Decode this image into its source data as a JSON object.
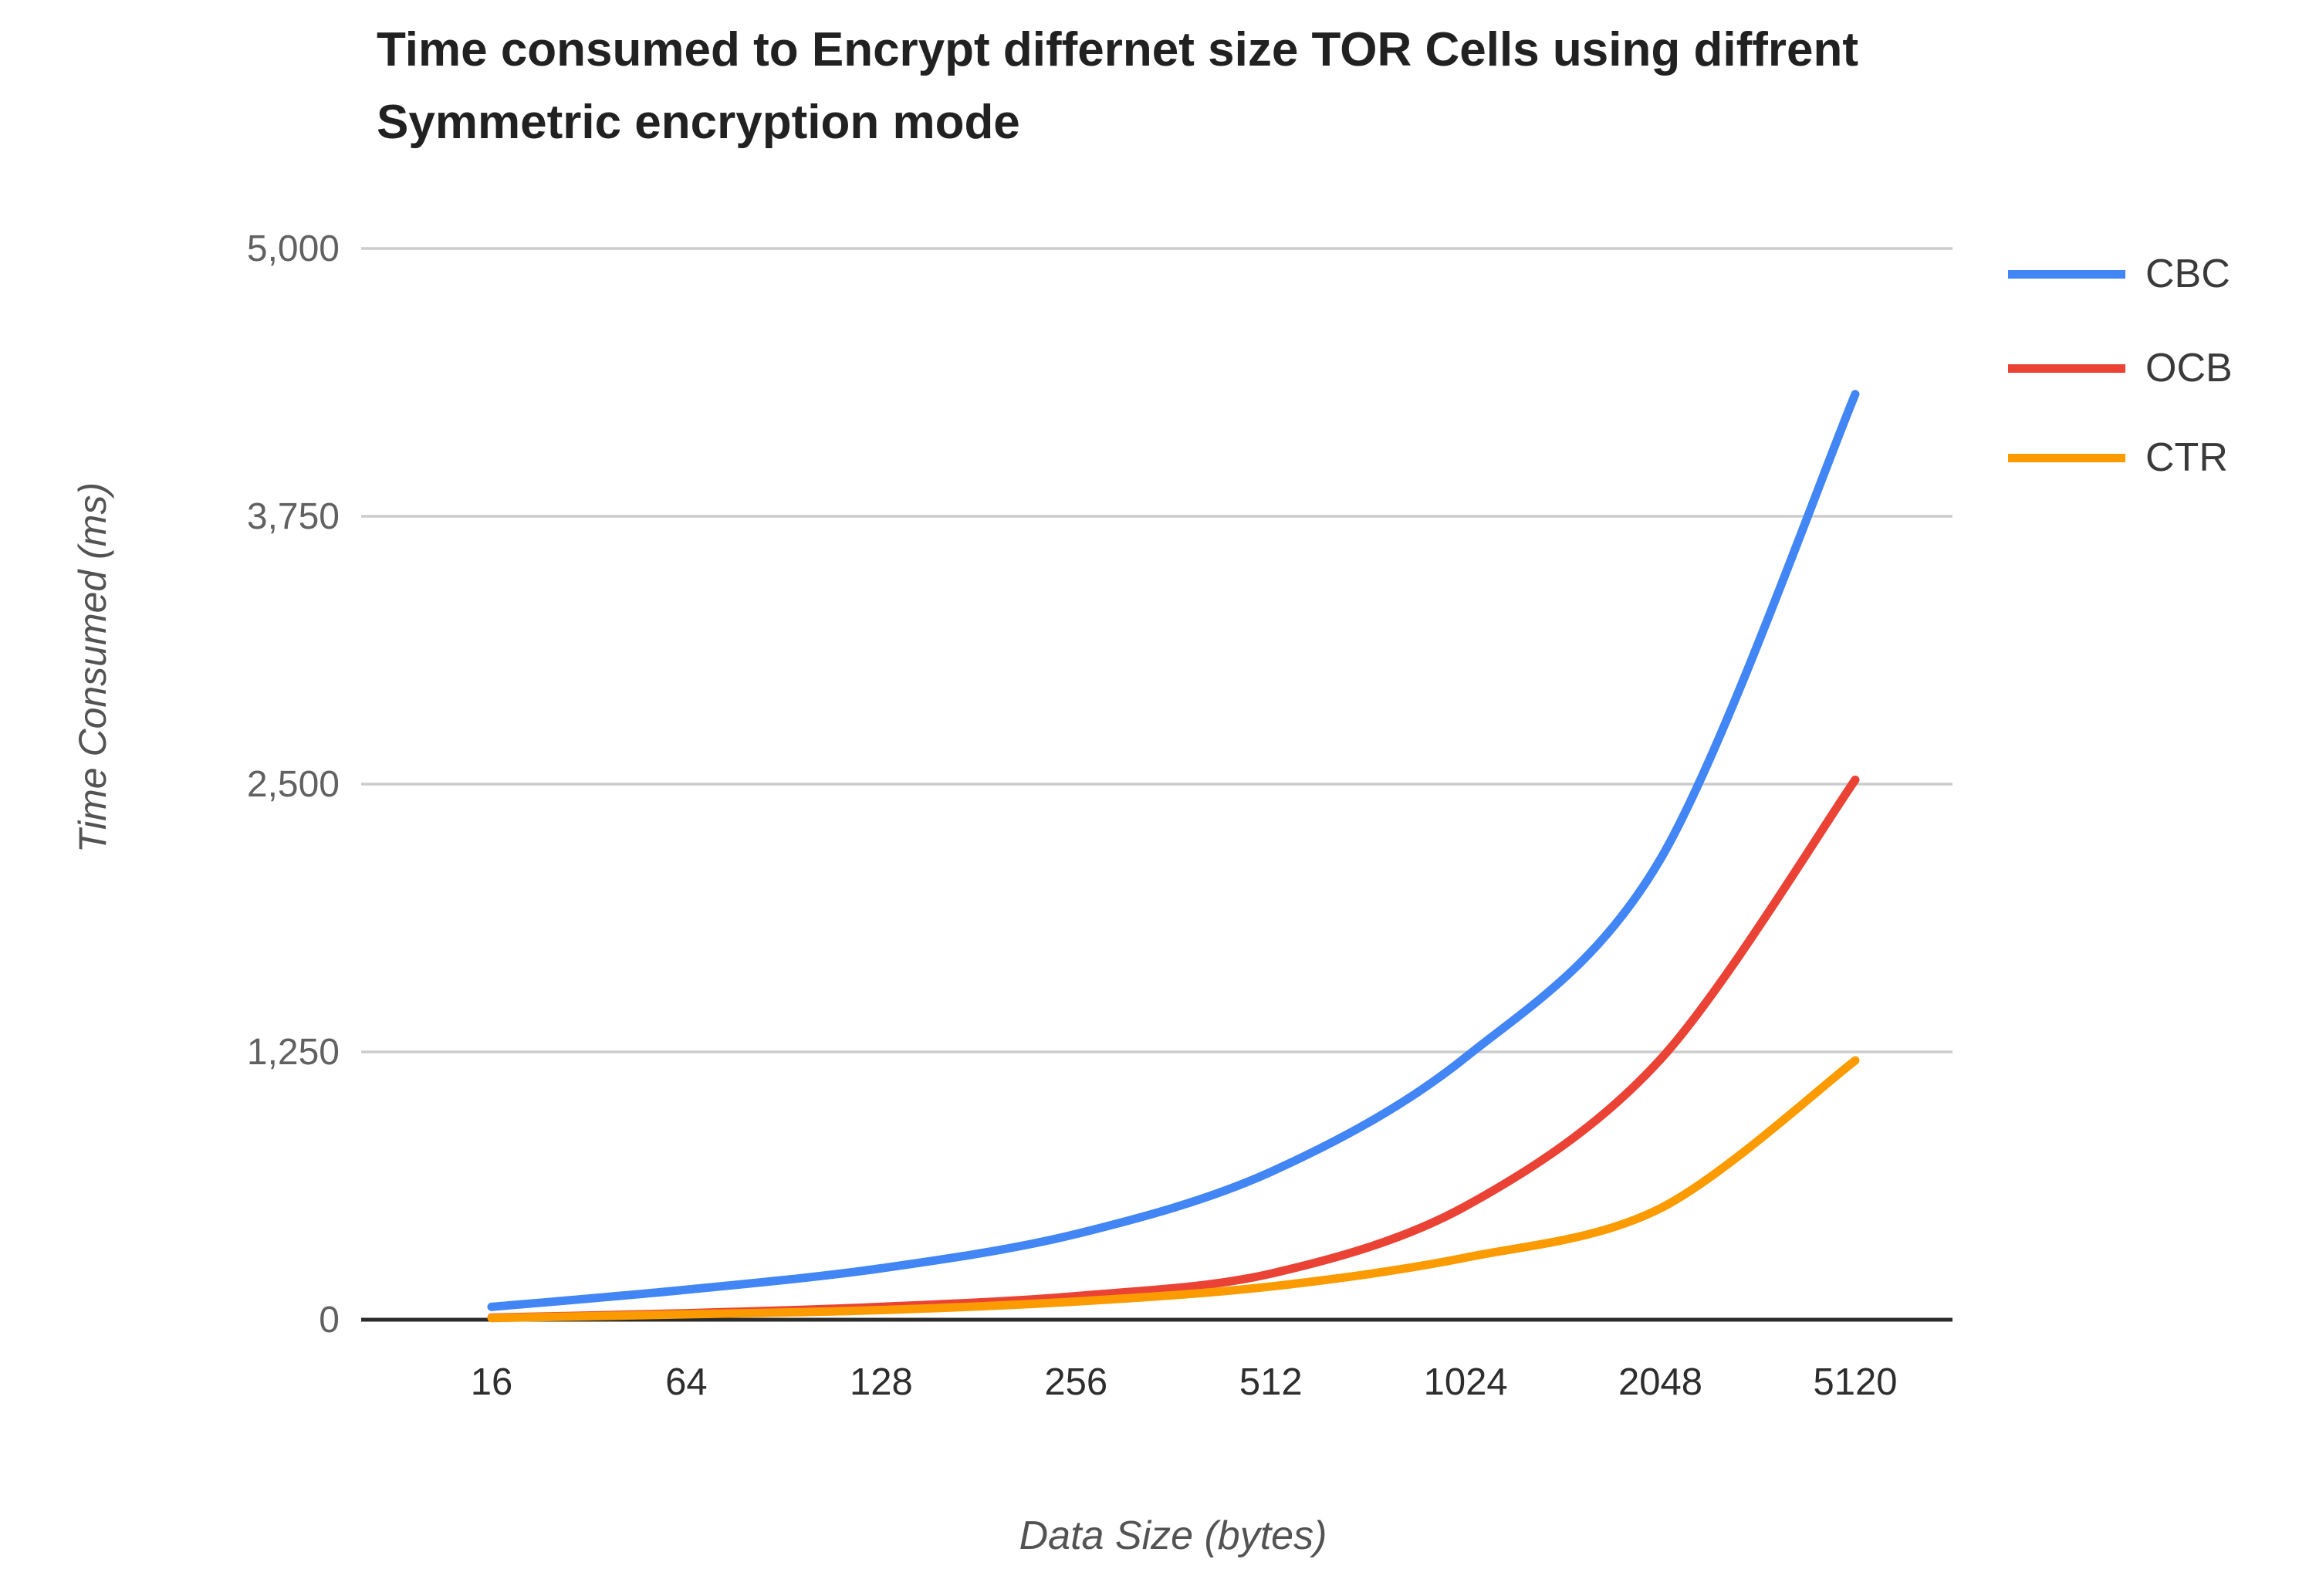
{
  "title": "Time consumed to Encrypt differnet size TOR Cells using diffrent Symmetric encryption mode",
  "chart_data": {
    "type": "line",
    "title": "Time consumed to Encrypt differnet size TOR Cells using diffrent Symmetric encryption mode",
    "xlabel": "Data Size (bytes)",
    "ylabel": "Time Consumed (ms)",
    "categories": [
      "16",
      "64",
      "128",
      "256",
      "512",
      "1024",
      "2048",
      "5120"
    ],
    "series": [
      {
        "name": "CBC",
        "color": "#4285F4",
        "values": [
          60,
          140,
          240,
          400,
          690,
          1225,
          2150,
          4320
        ]
      },
      {
        "name": "OCB",
        "color": "#EA4335",
        "values": [
          10,
          30,
          60,
          110,
          215,
          530,
          1215,
          2520
        ]
      },
      {
        "name": "CTR",
        "color": "#FB9B00",
        "values": [
          8,
          25,
          45,
          85,
          155,
          290,
          520,
          1210
        ]
      }
    ],
    "ylim": [
      0,
      5000
    ],
    "yticks": [
      0,
      1250,
      2500,
      3750,
      5000
    ],
    "ytick_labels": [
      "0",
      "1,250",
      "2,500",
      "3,750",
      "5,000"
    ],
    "grid": "horizontal-only",
    "gridline_color": "#cccccc",
    "axis_line_color": "#2b2b2b",
    "legend_position": "right"
  }
}
